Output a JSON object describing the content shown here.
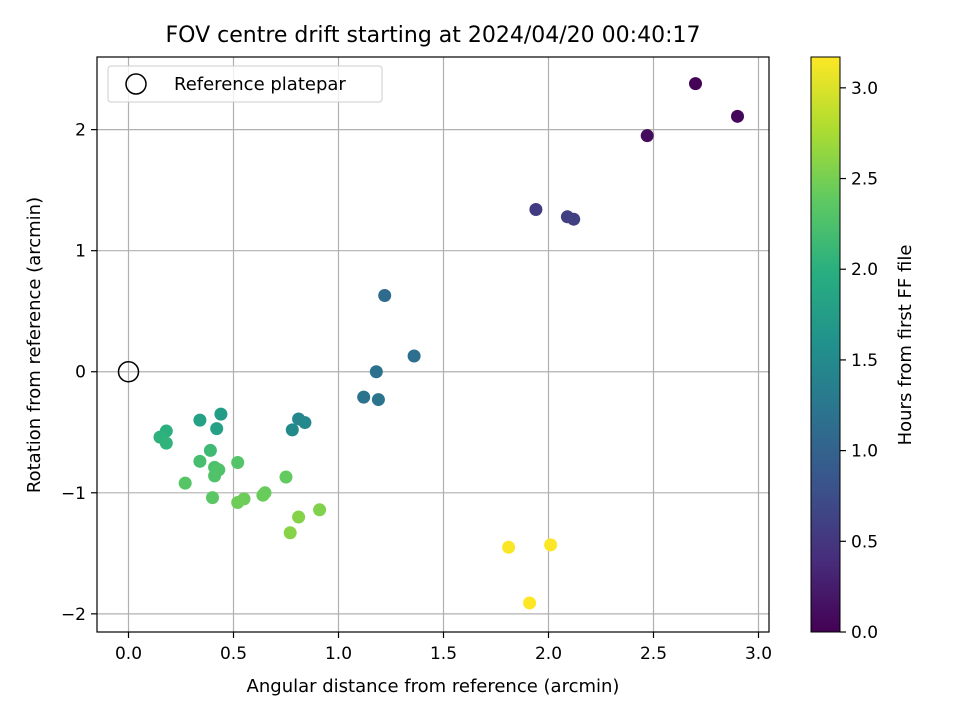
{
  "chart_data": {
    "type": "scatter",
    "title": "FOV centre drift starting at 2024/04/20 00:40:17",
    "xlabel": "Angular distance from reference (arcmin)",
    "ylabel": "Rotation from reference (arcmin)",
    "xlim": [
      -0.15,
      3.05
    ],
    "ylim": [
      -2.15,
      2.6
    ],
    "xticks": [
      0.0,
      0.5,
      1.0,
      1.5,
      2.0,
      2.5,
      3.0
    ],
    "xtick_labels": [
      "0.0",
      "0.5",
      "1.0",
      "1.5",
      "2.0",
      "2.5",
      "3.0"
    ],
    "yticks": [
      -2,
      -1,
      0,
      1,
      2
    ],
    "ytick_labels": [
      "−2",
      "−1",
      "0",
      "1",
      "2"
    ],
    "grid": true,
    "legend": {
      "placement": "top-left",
      "entries": [
        "Reference platepar"
      ]
    },
    "reference_point": {
      "x": 0.0,
      "y": 0.0
    },
    "colorbar": {
      "label": "Hours from first FF file",
      "colormap": "viridis",
      "range": [
        0.0,
        3.17
      ],
      "ticks": [
        0.0,
        0.5,
        1.0,
        1.5,
        2.0,
        2.5,
        3.0
      ],
      "tick_labels": [
        "0.0",
        "0.5",
        "1.0",
        "1.5",
        "2.0",
        "2.5",
        "3.0"
      ]
    },
    "points": [
      {
        "x": 2.7,
        "y": 2.38,
        "c": 0.02
      },
      {
        "x": 2.9,
        "y": 2.11,
        "c": 0.05
      },
      {
        "x": 2.47,
        "y": 1.95,
        "c": 0.1
      },
      {
        "x": 1.94,
        "y": 1.34,
        "c": 0.55
      },
      {
        "x": 2.09,
        "y": 1.28,
        "c": 0.58
      },
      {
        "x": 2.12,
        "y": 1.26,
        "c": 0.6
      },
      {
        "x": 1.22,
        "y": 0.63,
        "c": 1.1
      },
      {
        "x": 1.36,
        "y": 0.13,
        "c": 1.15
      },
      {
        "x": 1.18,
        "y": 0.0,
        "c": 1.18
      },
      {
        "x": 1.12,
        "y": -0.21,
        "c": 1.2
      },
      {
        "x": 1.19,
        "y": -0.23,
        "c": 1.22
      },
      {
        "x": 0.81,
        "y": -0.39,
        "c": 1.45
      },
      {
        "x": 0.84,
        "y": -0.42,
        "c": 1.48
      },
      {
        "x": 0.78,
        "y": -0.48,
        "c": 1.5
      },
      {
        "x": 0.44,
        "y": -0.35,
        "c": 1.75
      },
      {
        "x": 0.34,
        "y": -0.4,
        "c": 1.8
      },
      {
        "x": 0.42,
        "y": -0.47,
        "c": 1.82
      },
      {
        "x": 0.18,
        "y": -0.49,
        "c": 2.0
      },
      {
        "x": 0.15,
        "y": -0.54,
        "c": 2.02
      },
      {
        "x": 0.18,
        "y": -0.59,
        "c": 2.05
      },
      {
        "x": 0.39,
        "y": -0.65,
        "c": 2.15
      },
      {
        "x": 0.34,
        "y": -0.74,
        "c": 2.2
      },
      {
        "x": 0.52,
        "y": -0.75,
        "c": 2.3
      },
      {
        "x": 0.41,
        "y": -0.79,
        "c": 2.25
      },
      {
        "x": 0.43,
        "y": -0.81,
        "c": 2.27
      },
      {
        "x": 0.41,
        "y": -0.86,
        "c": 2.28
      },
      {
        "x": 0.27,
        "y": -0.92,
        "c": 2.32
      },
      {
        "x": 0.75,
        "y": -0.87,
        "c": 2.4
      },
      {
        "x": 0.65,
        "y": -1.0,
        "c": 2.42
      },
      {
        "x": 0.64,
        "y": -1.02,
        "c": 2.43
      },
      {
        "x": 0.4,
        "y": -1.04,
        "c": 2.35
      },
      {
        "x": 0.55,
        "y": -1.05,
        "c": 2.45
      },
      {
        "x": 0.52,
        "y": -1.08,
        "c": 2.46
      },
      {
        "x": 0.91,
        "y": -1.14,
        "c": 2.55
      },
      {
        "x": 0.81,
        "y": -1.2,
        "c": 2.57
      },
      {
        "x": 0.77,
        "y": -1.33,
        "c": 2.58
      },
      {
        "x": 1.81,
        "y": -1.45,
        "c": 3.15
      },
      {
        "x": 2.01,
        "y": -1.43,
        "c": 3.16
      },
      {
        "x": 1.91,
        "y": -1.91,
        "c": 3.17
      }
    ]
  }
}
